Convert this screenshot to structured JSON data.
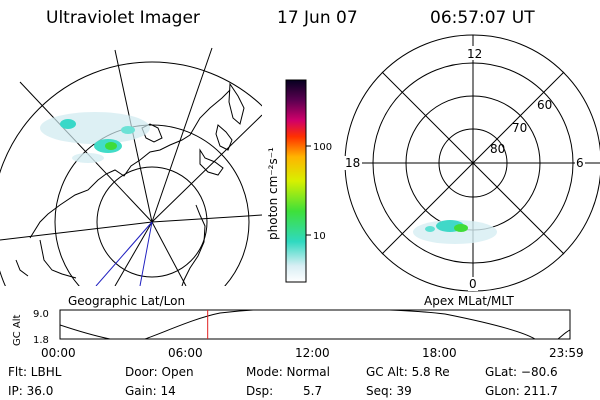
{
  "header": {
    "title": "Ultraviolet Imager",
    "date": "17 Jun 07",
    "time": "06:57:07 UT"
  },
  "colorbar": {
    "unit_label": "photon cm⁻²s⁻¹",
    "ticks": [
      "100",
      "10"
    ]
  },
  "polar_plot": {
    "mlt_labels": [
      "12",
      "18",
      "6",
      "0"
    ],
    "lat_labels": [
      "60",
      "70",
      "80"
    ],
    "caption": "Apex MLat/MLT"
  },
  "geo_plot": {
    "caption": "Geographic Lat/Lon"
  },
  "altitude_plot": {
    "ylabel": "GC Alt",
    "ymax": "9.0",
    "ymin": "1.8",
    "xticks": [
      "00:00",
      "06:00",
      "12:00",
      "18:00",
      "23:59"
    ],
    "current_time_marker_hours": 6.95
  },
  "info": {
    "flt": "Flt: LBHL",
    "ip": "IP: 36.0",
    "door": "Door: Open",
    "gain": "Gain: 14",
    "mode": "Mode: Normal",
    "dsp": "Dsp:",
    "dsp_value": "5.7",
    "gcalt": "GC Alt: 5.8 Re",
    "seq": "Seq: 39",
    "glat": "GLat: −80.6",
    "glon": "GLon: 211.7"
  }
}
